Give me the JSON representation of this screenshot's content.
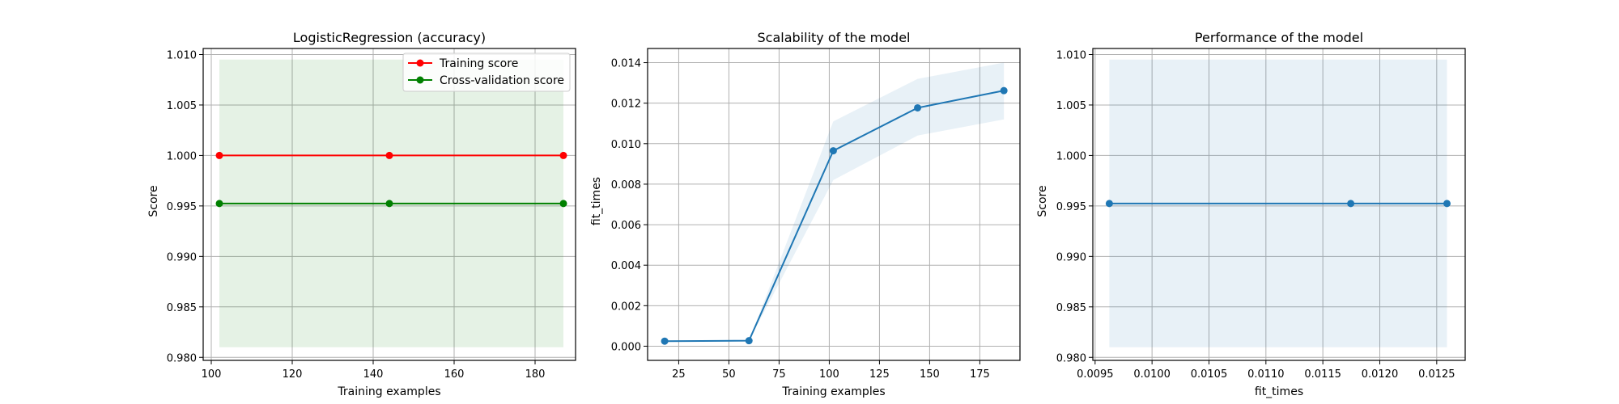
{
  "chart_data": [
    {
      "type": "line",
      "title": "LogisticRegression (accuracy)",
      "xlabel": "Training examples",
      "ylabel": "Score",
      "xlim": [
        98,
        190
      ],
      "ylim": [
        0.9797,
        1.0106
      ],
      "xticks": [
        100,
        120,
        140,
        160,
        180
      ],
      "yticks": [
        0.98,
        0.985,
        0.99,
        0.995,
        1.0,
        1.005,
        1.01
      ],
      "xtick_labels": [
        "100",
        "120",
        "140",
        "160",
        "180"
      ],
      "ytick_labels": [
        "0.980",
        "0.985",
        "0.990",
        "0.995",
        "1.000",
        "1.005",
        "1.010"
      ],
      "grid": true,
      "legend": "top-right",
      "series": [
        {
          "name": "Training score",
          "x": [
            102,
            144,
            187
          ],
          "y": [
            1.0,
            1.0,
            1.0
          ],
          "band_lower": [
            1.0,
            1.0,
            1.0
          ],
          "band_upper": [
            1.0,
            1.0,
            1.0
          ],
          "color": "#ff0000",
          "fill_color": "#ff0000"
        },
        {
          "name": "Cross-validation score",
          "x": [
            102,
            144,
            187
          ],
          "y": [
            0.99524,
            0.99524,
            0.99524
          ],
          "band_lower": [
            0.981,
            0.981,
            0.981
          ],
          "band_upper": [
            1.0095,
            1.0095,
            1.0095
          ],
          "color": "#008000",
          "fill_color": "#008000"
        }
      ]
    },
    {
      "type": "line",
      "title": "Scalability of the model",
      "xlabel": "Training examples",
      "ylabel": "fit_times",
      "xlim": [
        9.5,
        195
      ],
      "ylim": [
        -0.0007,
        0.0147
      ],
      "xticks": [
        25,
        50,
        75,
        100,
        125,
        150,
        175
      ],
      "yticks": [
        0.0,
        0.002,
        0.004,
        0.006,
        0.008,
        0.01,
        0.012,
        0.014
      ],
      "xtick_labels": [
        "25",
        "50",
        "75",
        "100",
        "125",
        "150",
        "175"
      ],
      "ytick_labels": [
        "0.000",
        "0.002",
        "0.004",
        "0.006",
        "0.008",
        "0.010",
        "0.012",
        "0.014"
      ],
      "grid": true,
      "series": [
        {
          "x": [
            18,
            60,
            102,
            144,
            187
          ],
          "y": [
            0.00025,
            0.00027,
            0.00965,
            0.01177,
            0.01262
          ],
          "band_lower": [
            0.00025,
            0.00027,
            0.0082,
            0.0104,
            0.0112
          ],
          "band_upper": [
            0.00025,
            0.00027,
            0.0111,
            0.0132,
            0.014
          ],
          "color": "#1f77b4",
          "fill_color": "#1f77b4"
        }
      ]
    },
    {
      "type": "line",
      "title": "Performance of the model",
      "xlabel": "fit_times",
      "ylabel": "Score",
      "xlim": [
        0.00948,
        0.01275
      ],
      "ylim": [
        0.9797,
        1.0106
      ],
      "xticks": [
        0.0095,
        0.01,
        0.0105,
        0.011,
        0.0115,
        0.012,
        0.0125
      ],
      "yticks": [
        0.98,
        0.985,
        0.99,
        0.995,
        1.0,
        1.005,
        1.01
      ],
      "xtick_labels": [
        "0.0095",
        "0.0100",
        "0.0105",
        "0.0110",
        "0.0115",
        "0.0120",
        "0.0125"
      ],
      "ytick_labels": [
        "0.980",
        "0.985",
        "0.990",
        "0.995",
        "1.000",
        "1.005",
        "1.010"
      ],
      "grid": true,
      "series": [
        {
          "x": [
            0.009625,
            0.011745,
            0.01259
          ],
          "y": [
            0.99524,
            0.99524,
            0.99524
          ],
          "band_lower": [
            0.981,
            0.981,
            0.981
          ],
          "band_upper": [
            1.0095,
            1.0095,
            1.0095
          ],
          "color": "#1f77b4",
          "fill_color": "#1f77b4"
        }
      ]
    }
  ]
}
